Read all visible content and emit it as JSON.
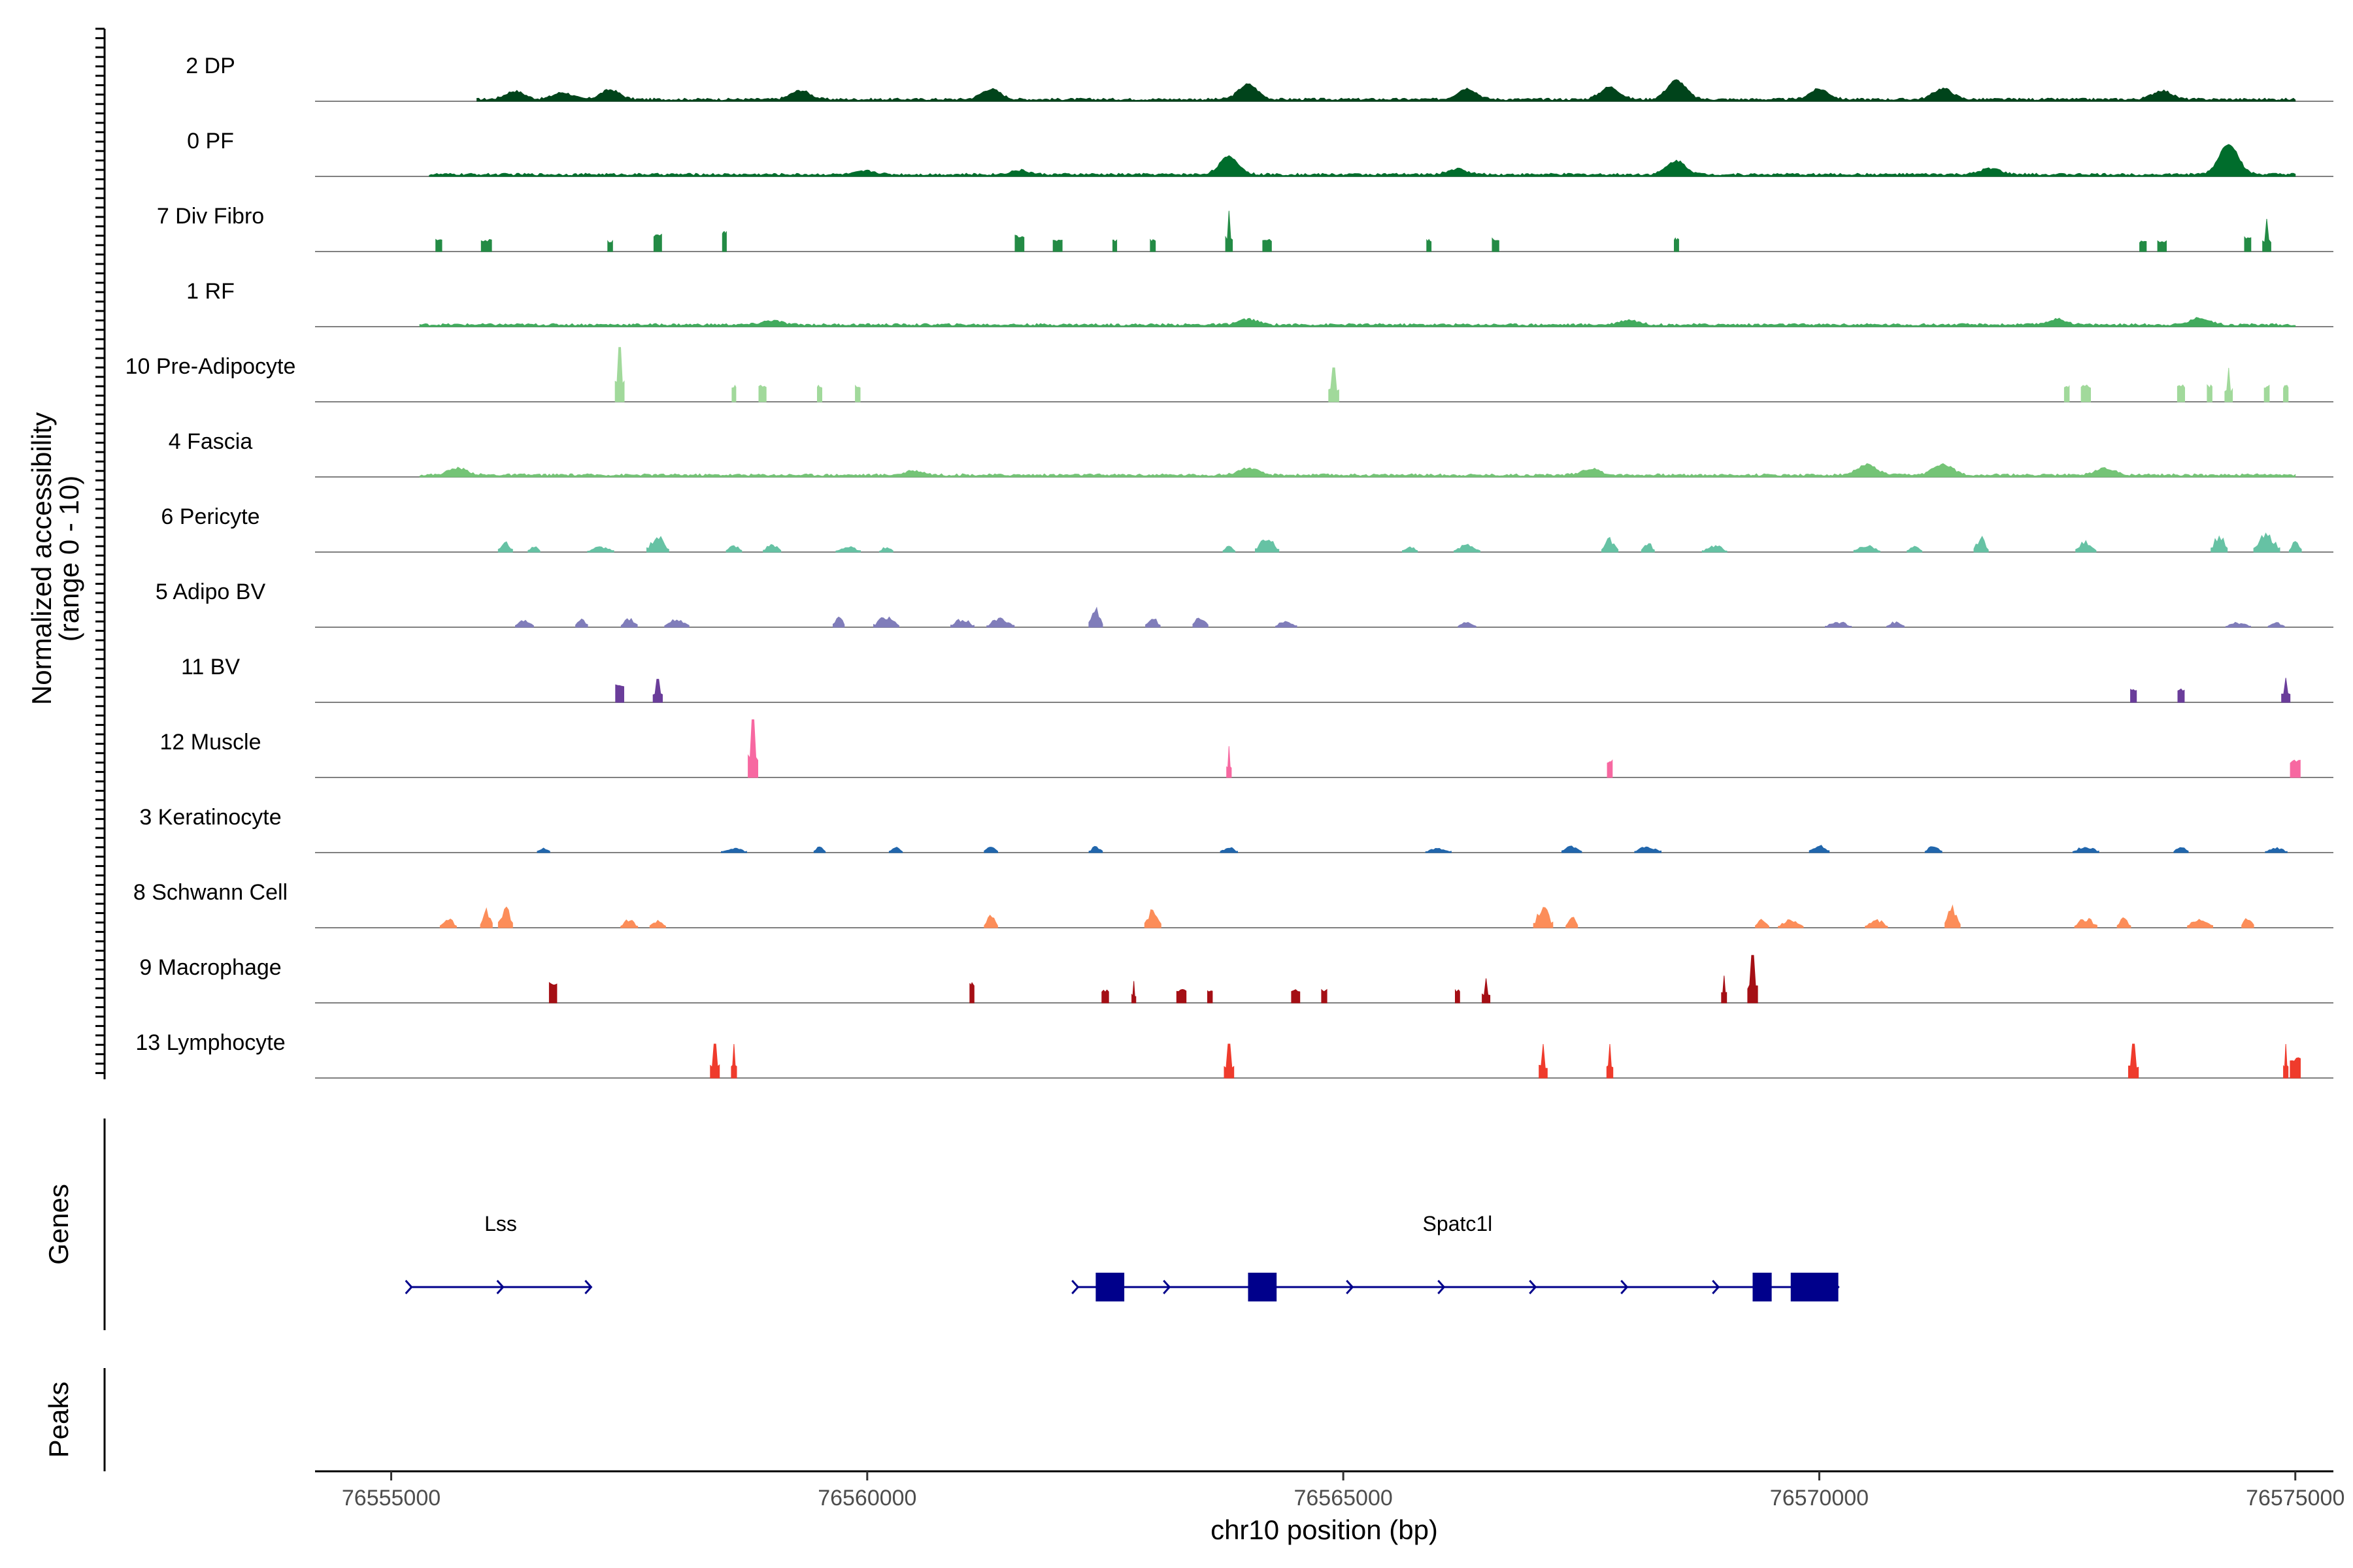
{
  "chart_data": {
    "type": "area",
    "title": "",
    "ylabel": "Normalized accessibility\n(range 0 - 10)",
    "ylim": [
      0,
      10
    ],
    "xlabel": "chr10 position (bp)",
    "xlim": [
      76554200,
      76575400
    ],
    "x_ticks": [
      76555000,
      76560000,
      76565000,
      76570000,
      76575000
    ],
    "x_tick_labels": [
      "76555000",
      "76560000",
      "76565000",
      "76570000",
      "76575000"
    ],
    "tracks": [
      {
        "name": "2 DP",
        "color": "#00441B",
        "kind": "continuous",
        "x_range": [
          76555900,
          76575000
        ],
        "peaks": [
          [
            76556300,
            1.2
          ],
          [
            76556800,
            1.0
          ],
          [
            76557300,
            1.4
          ],
          [
            76559300,
            1.3
          ],
          [
            76561300,
            1.5
          ],
          [
            76564000,
            2.2
          ],
          [
            76566300,
            1.6
          ],
          [
            76567800,
            1.8
          ],
          [
            76568500,
            2.8
          ],
          [
            76570000,
            1.5
          ],
          [
            76571300,
            1.6
          ],
          [
            76573600,
            1.3
          ]
        ]
      },
      {
        "name": "0 PF",
        "color": "#006D2C",
        "kind": "continuous",
        "x_range": [
          76555400,
          76575000
        ],
        "peaks": [
          [
            76560000,
            0.5
          ],
          [
            76561600,
            0.6
          ],
          [
            76563800,
            2.6
          ],
          [
            76566200,
            0.8
          ],
          [
            76568500,
            2.0
          ],
          [
            76571800,
            0.9
          ],
          [
            76574300,
            4.5
          ]
        ]
      },
      {
        "name": "7 Div Fibro",
        "color": "#238B45",
        "kind": "block",
        "peaks": [
          [
            76555500,
            1.8
          ],
          [
            76556000,
            1.8
          ],
          [
            76557300,
            1.6
          ],
          [
            76557800,
            2.6
          ],
          [
            76558500,
            3.0
          ],
          [
            76561600,
            2.5
          ],
          [
            76562000,
            1.8
          ],
          [
            76562600,
            1.8
          ],
          [
            76563000,
            1.8
          ],
          [
            76563800,
            6.0
          ],
          [
            76564200,
            1.8
          ],
          [
            76565900,
            1.8
          ],
          [
            76566600,
            2.0
          ],
          [
            76568500,
            2.0
          ],
          [
            76573400,
            1.6
          ],
          [
            76573600,
            1.6
          ],
          [
            76574500,
            2.2
          ],
          [
            76574700,
            4.8
          ]
        ]
      },
      {
        "name": "1 RF",
        "color": "#41AB5D",
        "kind": "continuous",
        "x_range": [
          76555300,
          76575000
        ],
        "peaks": [
          [
            76559000,
            0.6
          ],
          [
            76564000,
            0.8
          ],
          [
            76568000,
            0.7
          ],
          [
            76572500,
            0.8
          ],
          [
            76574000,
            1.0
          ]
        ]
      },
      {
        "name": "10 Pre-Adipocyte",
        "color": "#A1D99B",
        "kind": "block",
        "peaks": [
          [
            76557400,
            8.0
          ],
          [
            76558600,
            2.5
          ],
          [
            76558900,
            2.5
          ],
          [
            76559500,
            2.5
          ],
          [
            76559900,
            2.5
          ],
          [
            76564900,
            5.0
          ],
          [
            76572600,
            2.5
          ],
          [
            76572800,
            2.5
          ],
          [
            76573800,
            2.5
          ],
          [
            76574100,
            2.5
          ],
          [
            76574300,
            5.0
          ],
          [
            76574700,
            2.5
          ],
          [
            76574900,
            2.5
          ]
        ]
      },
      {
        "name": "4 Fascia",
        "color": "#74C476",
        "kind": "continuous",
        "x_range": [
          76555300,
          76575000
        ],
        "peaks": [
          [
            76555700,
            1.0
          ],
          [
            76560500,
            0.6
          ],
          [
            76564000,
            1.0
          ],
          [
            76567600,
            0.9
          ],
          [
            76570500,
            1.5
          ],
          [
            76571300,
            1.6
          ],
          [
            76573000,
            1.0
          ]
        ]
      },
      {
        "name": "6 Pericyte",
        "color": "#66C2A4",
        "kind": "segmented",
        "peaks": [
          [
            76556200,
            1.5
          ],
          [
            76556500,
            1.0
          ],
          [
            76557200,
            0.8
          ],
          [
            76557800,
            2.4
          ],
          [
            76558600,
            1.0
          ],
          [
            76559000,
            1.2
          ],
          [
            76559800,
            0.8
          ],
          [
            76560200,
            0.8
          ],
          [
            76563800,
            1.0
          ],
          [
            76564200,
            2.3
          ],
          [
            76565700,
            0.8
          ],
          [
            76566300,
            1.1
          ],
          [
            76567800,
            2.0
          ],
          [
            76568200,
            1.4
          ],
          [
            76568900,
            1.0
          ],
          [
            76570500,
            1.0
          ],
          [
            76571000,
            0.8
          ],
          [
            76571700,
            2.2
          ],
          [
            76572800,
            1.6
          ],
          [
            76574200,
            2.5
          ],
          [
            76574700,
            2.6
          ],
          [
            76575000,
            1.6
          ]
        ]
      },
      {
        "name": "5 Adipo BV",
        "color": "#807DBA",
        "kind": "segmented",
        "peaks": [
          [
            76556400,
            1.2
          ],
          [
            76557000,
            1.4
          ],
          [
            76557500,
            1.5
          ],
          [
            76558000,
            1.3
          ],
          [
            76559700,
            1.8
          ],
          [
            76560200,
            1.6
          ],
          [
            76561000,
            1.2
          ],
          [
            76561400,
            1.3
          ],
          [
            76562400,
            2.8
          ],
          [
            76563000,
            1.4
          ],
          [
            76563500,
            1.6
          ],
          [
            76564400,
            1.0
          ],
          [
            76566300,
            0.8
          ],
          [
            76570200,
            0.8
          ],
          [
            76570800,
            0.8
          ],
          [
            76574400,
            0.7
          ],
          [
            76574800,
            0.7
          ]
        ]
      },
      {
        "name": "11 BV",
        "color": "#6A3D9A",
        "kind": "block",
        "peaks": [
          [
            76557400,
            2.6
          ],
          [
            76557800,
            3.4
          ],
          [
            76573300,
            2.0
          ],
          [
            76573800,
            2.0
          ],
          [
            76574900,
            3.6
          ]
        ]
      },
      {
        "name": "12 Muscle",
        "color": "#F768A1",
        "kind": "block",
        "peaks": [
          [
            76558800,
            8.5
          ],
          [
            76563800,
            4.6
          ],
          [
            76567800,
            2.6
          ],
          [
            76575000,
            2.6
          ]
        ]
      },
      {
        "name": "3 Keratinocyte",
        "color": "#2166AC",
        "kind": "segmented",
        "peaks": [
          [
            76556600,
            0.8
          ],
          [
            76558600,
            0.7
          ],
          [
            76559500,
            0.9
          ],
          [
            76560300,
            0.9
          ],
          [
            76561300,
            0.9
          ],
          [
            76562400,
            0.9
          ],
          [
            76563800,
            0.8
          ],
          [
            76566000,
            0.7
          ],
          [
            76567400,
            1.0
          ],
          [
            76568200,
            0.9
          ],
          [
            76570000,
            1.1
          ],
          [
            76571200,
            1.0
          ],
          [
            76572800,
            0.9
          ],
          [
            76573800,
            0.9
          ],
          [
            76574800,
            0.7
          ]
        ]
      },
      {
        "name": "8 Schwann Cell",
        "color": "#FC8D59",
        "kind": "segmented",
        "peaks": [
          [
            76555600,
            1.4
          ],
          [
            76556000,
            2.6
          ],
          [
            76556200,
            3.0
          ],
          [
            76557500,
            1.2
          ],
          [
            76557800,
            1.2
          ],
          [
            76561300,
            1.8
          ],
          [
            76563000,
            2.7
          ],
          [
            76567100,
            3.0
          ],
          [
            76567400,
            1.8
          ],
          [
            76569400,
            1.2
          ],
          [
            76569700,
            1.2
          ],
          [
            76570600,
            1.2
          ],
          [
            76571400,
            3.0
          ],
          [
            76572800,
            1.4
          ],
          [
            76573200,
            1.4
          ],
          [
            76574000,
            1.4
          ],
          [
            76574500,
            1.6
          ]
        ]
      },
      {
        "name": "9 Macrophage",
        "color": "#A50F15",
        "kind": "block",
        "peaks": [
          [
            76556700,
            3.0
          ],
          [
            76561100,
            3.0
          ],
          [
            76562500,
            2.0
          ],
          [
            76562800,
            3.2
          ],
          [
            76563300,
            2.0
          ],
          [
            76563600,
            2.0
          ],
          [
            76564500,
            2.0
          ],
          [
            76564800,
            2.0
          ],
          [
            76566200,
            2.0
          ],
          [
            76566500,
            3.6
          ],
          [
            76569000,
            4.0
          ],
          [
            76569300,
            7.0
          ]
        ]
      },
      {
        "name": "13 Lymphocyte",
        "color": "#EF3B2C",
        "kind": "block",
        "peaks": [
          [
            76558400,
            5.0
          ],
          [
            76558600,
            5.0
          ],
          [
            76563800,
            5.0
          ],
          [
            76567100,
            5.0
          ],
          [
            76567800,
            5.0
          ],
          [
            76573300,
            5.0
          ],
          [
            76574900,
            5.0
          ],
          [
            76575000,
            3.0
          ]
        ]
      }
    ],
    "genes_panel": {
      "label": "Genes",
      "color": "#00008B",
      "genes": [
        {
          "name": "Lss",
          "start": 76555200,
          "end": 76557100,
          "strand": "+",
          "exons": []
        },
        {
          "name": "Spatc1l",
          "start": 76562200,
          "end": 76570200,
          "strand": "+",
          "exons": [
            [
              76562400,
              76562700
            ],
            [
              76564000,
              76564300
            ],
            [
              76569300,
              76569500
            ],
            [
              76569700,
              76570200
            ]
          ]
        }
      ]
    },
    "peaks_panel": {
      "label": "Peaks"
    }
  }
}
